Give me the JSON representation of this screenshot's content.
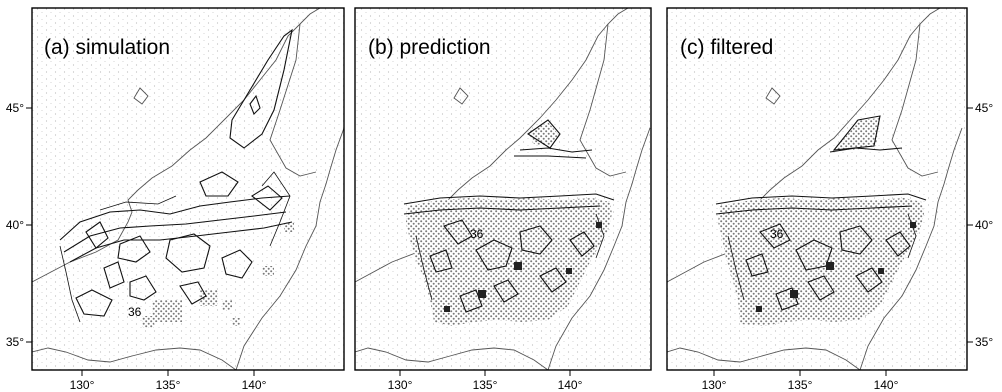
{
  "panels": [
    {
      "title": "(a) simulation",
      "contour_label": "36",
      "x_ticks": [
        "130°",
        "135°",
        "140°"
      ],
      "y_ticks": [
        "45°",
        "40°",
        "35°"
      ]
    },
    {
      "title": "(b) prediction",
      "contour_label": "36",
      "x_ticks": [
        "130°",
        "135°",
        "140°"
      ],
      "y_ticks": []
    },
    {
      "title": "(c) filtered",
      "contour_label": "36",
      "x_ticks": [
        "130°",
        "135°",
        "140°"
      ],
      "y_ticks": [
        "45°",
        "40°",
        "35°"
      ]
    }
  ],
  "colors": {
    "frame": "#000000",
    "coast": "#555555",
    "contour": "#111111",
    "stipple": "#bbbbbb",
    "shade": "#7a7a7a"
  },
  "icons": {
    "stipple": "scattered-ocean-dots",
    "shading": "hatched-square-cells"
  }
}
